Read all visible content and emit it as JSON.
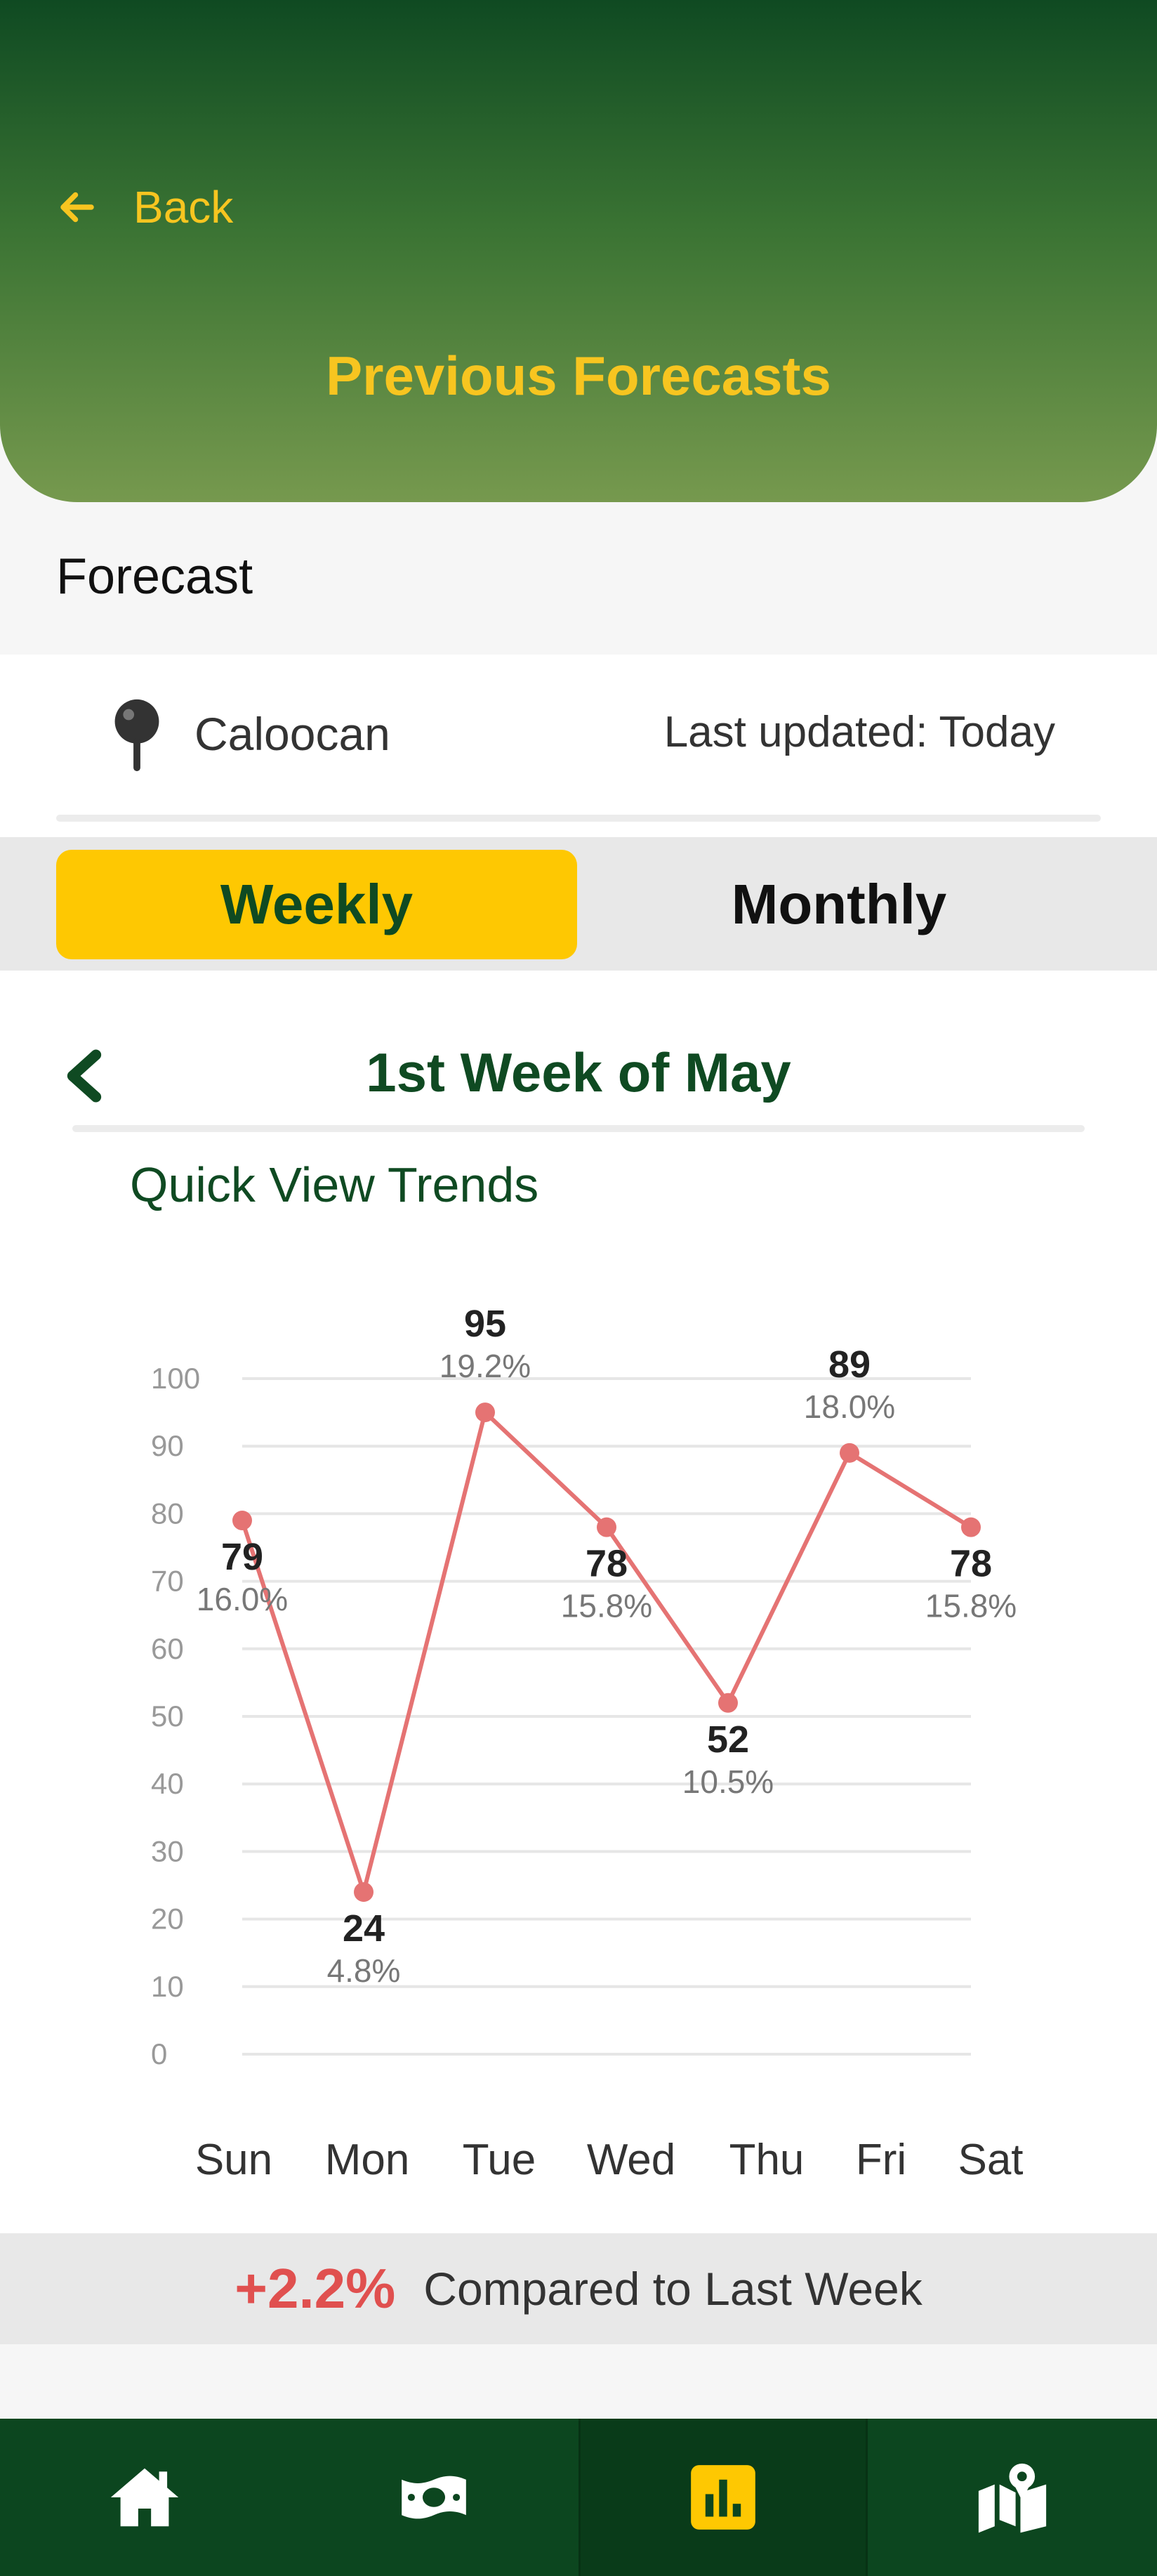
{
  "header": {
    "back_label": "Back",
    "title": "Previous Forecasts"
  },
  "section_label": "Forecast",
  "location": {
    "name": "Caloocan",
    "last_updated": "Last updated: Today"
  },
  "tabs": [
    {
      "label": "Weekly",
      "active": true
    },
    {
      "label": "Monthly",
      "active": false
    }
  ],
  "week_title": "1st Week of May",
  "chart_title": "Quick View Trends",
  "chart_data": {
    "type": "line",
    "title": "Quick View Trends",
    "categories": [
      "Sun",
      "Mon",
      "Tue",
      "Wed",
      "Thu",
      "Fri",
      "Sat"
    ],
    "series": [
      {
        "values": [
          79,
          24,
          95,
          78,
          52,
          89,
          78
        ],
        "percents": [
          "16.0%",
          "4.8%",
          "19.2%",
          "15.8%",
          "10.5%",
          "18.0%",
          "15.8%"
        ]
      }
    ],
    "y_ticks": [
      0,
      10,
      20,
      30,
      40,
      50,
      60,
      70,
      80,
      90,
      100
    ],
    "ylim": [
      0,
      100
    ],
    "grid": true,
    "line_color": "#e57373"
  },
  "comparison": {
    "change": "+2.2%",
    "text": "Compared to Last Week"
  },
  "bottom_nav": [
    {
      "icon": "home-icon"
    },
    {
      "icon": "money-icon"
    },
    {
      "icon": "chart-icon",
      "active": true
    },
    {
      "icon": "map-icon"
    }
  ],
  "colors": {
    "primary_green": "#0f4a22",
    "accent_yellow": "#fec802",
    "positive_red": "#e0504f"
  }
}
